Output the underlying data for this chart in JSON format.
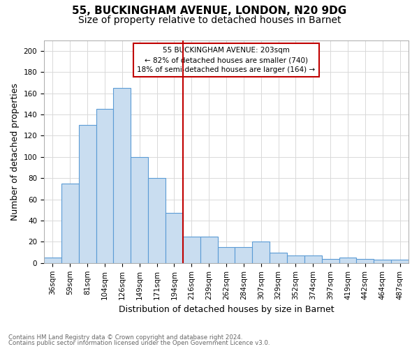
{
  "title": "55, BUCKINGHAM AVENUE, LONDON, N20 9DG",
  "subtitle": "Size of property relative to detached houses in Barnet",
  "xlabel": "Distribution of detached houses by size in Barnet",
  "ylabel": "Number of detached properties",
  "categories": [
    "36sqm",
    "59sqm",
    "81sqm",
    "104sqm",
    "126sqm",
    "149sqm",
    "171sqm",
    "194sqm",
    "216sqm",
    "239sqm",
    "262sqm",
    "284sqm",
    "307sqm",
    "329sqm",
    "352sqm",
    "374sqm",
    "397sqm",
    "419sqm",
    "442sqm",
    "464sqm",
    "487sqm"
  ],
  "values": [
    5,
    75,
    130,
    145,
    165,
    100,
    80,
    47,
    25,
    25,
    15,
    15,
    20,
    10,
    7,
    7,
    4,
    5,
    4,
    3,
    3
  ],
  "bar_color": "#c9ddf0",
  "bar_edge_color": "#5b9bd5",
  "annotation_box_text": "55 BUCKINGHAM AVENUE: 203sqm\n← 82% of detached houses are smaller (740)\n18% of semi-detached houses are larger (164) →",
  "annotation_box_color": "#c00000",
  "footer_line1": "Contains HM Land Registry data © Crown copyright and database right 2024.",
  "footer_line2": "Contains public sector information licensed under the Open Government Licence v3.0.",
  "bg_color": "#ffffff",
  "grid_color": "#d9d9d9",
  "ylim": [
    0,
    210
  ],
  "title_fontsize": 11,
  "subtitle_fontsize": 10,
  "axis_fontsize": 9,
  "tick_fontsize": 7.5,
  "property_line_x": 7.5
}
